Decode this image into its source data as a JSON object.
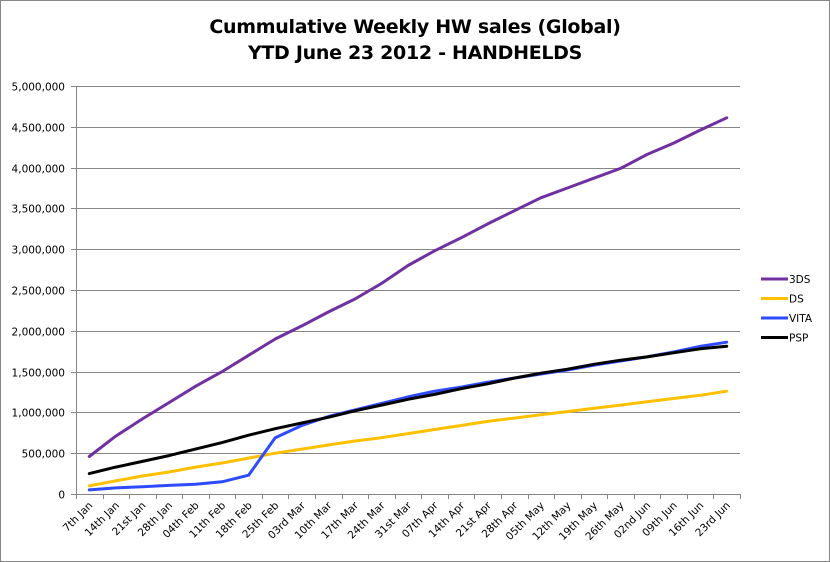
{
  "chart_data": {
    "type": "line",
    "title": "Cummulative Weekly HW sales (Global)",
    "subtitle": "YTD June 23 2012 - HANDHELDS",
    "xlabel": "",
    "ylabel": "",
    "ylim": [
      0,
      5000000
    ],
    "yticks": [
      0,
      500000,
      1000000,
      1500000,
      2000000,
      2500000,
      3000000,
      3500000,
      4000000,
      4500000,
      5000000
    ],
    "ytick_labels": [
      "0",
      "500,000",
      "1,000,000",
      "1,500,000",
      "2,000,000",
      "2,500,000",
      "3,000,000",
      "3,500,000",
      "4,000,000",
      "4,500,000",
      "5,000,000"
    ],
    "grid": true,
    "legend_position": "right",
    "categories": [
      "7th Jan",
      "14th Jan",
      "21st Jan",
      "28th Jan",
      "04th Feb",
      "11th Feb",
      "18th Feb",
      "25th Feb",
      "03rd Mar",
      "10th Mar",
      "17th Mar",
      "24th Mar",
      "31st Mar",
      "07th Apr",
      "14th Apr",
      "21st Apr",
      "28th Apr",
      "05th May",
      "12th May",
      "19th May",
      "26th May",
      "02nd Jun",
      "09th Jun",
      "16th Jun",
      "23rd Jun"
    ],
    "series": [
      {
        "name": "3DS",
        "color": "#7030a0",
        "values": [
          460000,
          710000,
          920000,
          1120000,
          1320000,
          1500000,
          1700000,
          1900000,
          2060000,
          2230000,
          2390000,
          2580000,
          2800000,
          2980000,
          3140000,
          3310000,
          3470000,
          3630000,
          3750000,
          3870000,
          3990000,
          4160000,
          4300000,
          4460000,
          4610000
        ]
      },
      {
        "name": "DS",
        "color": "#ffc000",
        "values": [
          100000,
          160000,
          220000,
          270000,
          330000,
          380000,
          440000,
          500000,
          550000,
          600000,
          650000,
          690000,
          740000,
          790000,
          840000,
          890000,
          930000,
          970000,
          1010000,
          1050000,
          1090000,
          1130000,
          1170000,
          1210000,
          1260000
        ]
      },
      {
        "name": "VITA",
        "color": "#2e4bff",
        "values": [
          50000,
          75000,
          90000,
          105000,
          120000,
          150000,
          230000,
          690000,
          840000,
          950000,
          1030000,
          1110000,
          1190000,
          1260000,
          1310000,
          1370000,
          1420000,
          1470000,
          1520000,
          1580000,
          1630000,
          1680000,
          1740000,
          1810000,
          1860000
        ]
      },
      {
        "name": "PSP",
        "color": "#000000",
        "values": [
          250000,
          330000,
          400000,
          470000,
          550000,
          630000,
          720000,
          800000,
          870000,
          940000,
          1020000,
          1090000,
          1160000,
          1220000,
          1290000,
          1350000,
          1420000,
          1480000,
          1530000,
          1590000,
          1640000,
          1680000,
          1730000,
          1780000,
          1810000
        ]
      }
    ]
  }
}
